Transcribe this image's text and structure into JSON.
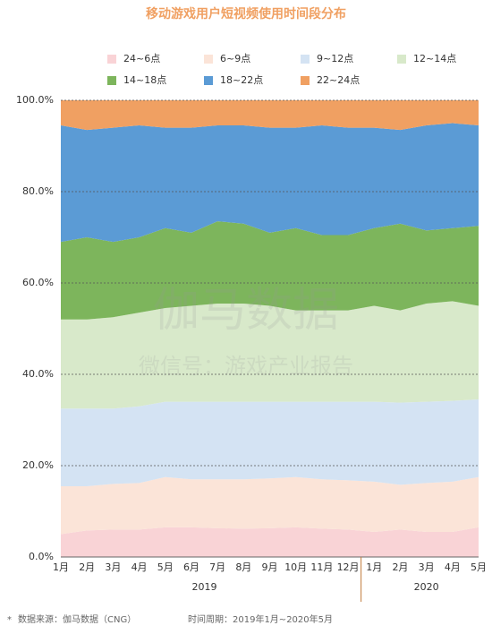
{
  "chart_data": {
    "type": "stacked_area_100",
    "title": "移动游戏用户短视频使用时间段分布",
    "categories": [
      "1月",
      "2月",
      "3月",
      "4月",
      "5月",
      "6月",
      "7月",
      "8月",
      "9月",
      "10月",
      "11月",
      "12月",
      "1月",
      "2月",
      "3月",
      "4月",
      "5月"
    ],
    "x_groups": [
      "2019",
      "2020"
    ],
    "ylim": [
      0,
      100
    ],
    "yticks": [
      {
        "value": 0,
        "label": "0.0%"
      },
      {
        "value": 20,
        "label": "20.0%"
      },
      {
        "value": 40,
        "label": "40.0%"
      },
      {
        "value": 60,
        "label": "60.0%"
      },
      {
        "value": 80,
        "label": "80.0%"
      },
      {
        "value": 100,
        "label": "100.0%"
      }
    ],
    "grid": true,
    "series": [
      {
        "name": "24~6点",
        "color": "#f9d3d6",
        "values": [
          5,
          5.8,
          6,
          6,
          6.5,
          6.5,
          6.3,
          6.2,
          6.3,
          6.5,
          6.2,
          6,
          5.5,
          6,
          5.5,
          5.5,
          6.5
        ]
      },
      {
        "name": "6~9点",
        "color": "#fbe4d8",
        "values": [
          10.5,
          9.7,
          10,
          10.2,
          11,
          10.5,
          10.7,
          10.8,
          10.9,
          11,
          10.8,
          10.8,
          11,
          9.8,
          10.7,
          11,
          11
        ]
      },
      {
        "name": "9~12点",
        "color": "#d4e3f3",
        "values": [
          17,
          17,
          16.5,
          16.8,
          16.5,
          17,
          17,
          17,
          16.8,
          16.5,
          17,
          17.2,
          17.5,
          18,
          17.8,
          17.7,
          17
        ]
      },
      {
        "name": "12~14点",
        "color": "#d8e9ca",
        "values": [
          19.5,
          19.5,
          20,
          20.5,
          20.5,
          21,
          21.5,
          21.5,
          21,
          20,
          20,
          20,
          21,
          20.2,
          21.5,
          21.8,
          20.5
        ]
      },
      {
        "name": "14~18点",
        "color": "#7db55c",
        "values": [
          17,
          18,
          16.5,
          16.5,
          17.5,
          16,
          18,
          17.5,
          16,
          18,
          16.5,
          16.5,
          17,
          19,
          16,
          16,
          17.5
        ]
      },
      {
        "name": "18~22点",
        "color": "#5b9bd5",
        "values": [
          25.5,
          23.5,
          25,
          24.5,
          22,
          23,
          21,
          21.5,
          23,
          22,
          24,
          23.5,
          22,
          20.5,
          23,
          23,
          22
        ]
      },
      {
        "name": "22~24点",
        "color": "#f0a062",
        "values": [
          5.5,
          6.5,
          6,
          5.5,
          6,
          6,
          5.5,
          5.5,
          6,
          6,
          5.5,
          6,
          6,
          6.5,
          5.5,
          5,
          5.5
        ]
      }
    ],
    "watermark": [
      "伽马数据",
      "微信号：游戏产业报告"
    ],
    "footnote": {
      "marker": "*",
      "source": "数据来源：伽马数据（CNG）",
      "period": "时间周期：2019年1月~2020年5月"
    }
  }
}
